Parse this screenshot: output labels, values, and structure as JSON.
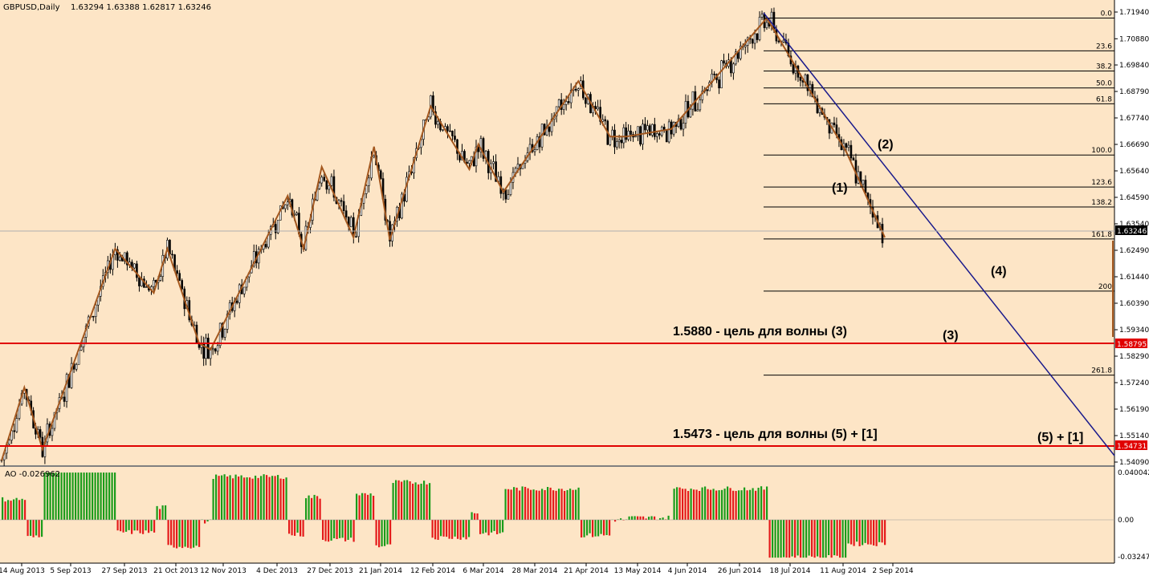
{
  "chart_header": {
    "symbol_title": "GBPUSD,Daily",
    "ohlc": "1.63294 1.63388 1.62817 1.63246"
  },
  "colors": {
    "background": "#fde5c6",
    "grid_text": "#000000",
    "zigzag": "#a3571e",
    "trendline": "#1a1a8c",
    "support": "#e00000",
    "ao_up": "#1a9c1a",
    "ao_down": "#e41a1a",
    "fib": "#000000"
  },
  "chart_data": [
    {
      "type": "candlestick",
      "title": "GBPUSD,Daily",
      "ylim": [
        1.5406,
        1.7255
      ],
      "x_tick_labels": [
        "14 Aug 2013",
        "5 Sep 2013",
        "27 Sep 2013",
        "21 Oct 2013",
        "12 Nov 2013",
        "4 Dec 2013",
        "27 Dec 2013",
        "21 Jan 2014",
        "12 Feb 2014",
        "6 Mar 2014",
        "28 Mar 2014",
        "21 Apr 2014",
        "13 May 2014",
        "4 Jun 2014",
        "26 Jun 2014",
        "18 Jul 2014",
        "11 Aug 2014",
        "2 Sep 2014"
      ],
      "y_tick_labels": [
        "1.71940",
        "1.70880",
        "1.69840",
        "1.68790",
        "1.67740",
        "1.66690",
        "1.65640",
        "1.64590",
        "1.63540",
        "1.62490",
        "1.61440",
        "1.60390",
        "1.59340",
        "1.58290",
        "1.57240",
        "1.56190",
        "1.55140",
        "1.54090"
      ],
      "current_price": "1.63246",
      "zigzag_points": [
        {
          "date": "2013-08-12",
          "price": 1.5415
        },
        {
          "date": "2013-08-22",
          "price": 1.5705
        },
        {
          "date": "2013-08-30",
          "price": 1.546
        },
        {
          "date": "2013-10-01",
          "price": 1.6255
        },
        {
          "date": "2013-10-18",
          "price": 1.608
        },
        {
          "date": "2013-10-24",
          "price": 1.6255
        },
        {
          "date": "2013-11-07",
          "price": 1.588
        },
        {
          "date": "2013-11-12",
          "price": 1.5855
        },
        {
          "date": "2013-12-16",
          "price": 1.6465
        },
        {
          "date": "2013-12-23",
          "price": 1.6255
        },
        {
          "date": "2013-12-31",
          "price": 1.658
        },
        {
          "date": "2014-01-14",
          "price": 1.63
        },
        {
          "date": "2014-01-23",
          "price": 1.666
        },
        {
          "date": "2014-01-30",
          "price": 1.629
        },
        {
          "date": "2014-02-17",
          "price": 1.682
        },
        {
          "date": "2014-03-06",
          "price": 1.657
        },
        {
          "date": "2014-03-10",
          "price": 1.667
        },
        {
          "date": "2014-03-21",
          "price": 1.648
        },
        {
          "date": "2014-04-23",
          "price": 1.692
        },
        {
          "date": "2014-05-07",
          "price": 1.67
        },
        {
          "date": "2014-05-14",
          "price": 1.67
        },
        {
          "date": "2014-06-03",
          "price": 1.673
        },
        {
          "date": "2014-07-15",
          "price": 1.717
        },
        {
          "date": "2014-08-19",
          "price": 1.664
        },
        {
          "date": "2014-09-05",
          "price": 1.63
        }
      ],
      "trendline": {
        "from": {
          "date": "2014-07-15",
          "price": 1.717
        },
        "to_bottom_right": true
      },
      "fibonacci_levels": [
        {
          "label": "0.0",
          "price": 1.717
        },
        {
          "label": "23.6",
          "price": 1.704
        },
        {
          "label": "38.2",
          "price": 1.696
        },
        {
          "label": "50.0",
          "price": 1.6893
        },
        {
          "label": "61.8",
          "price": 1.683
        },
        {
          "label": "100.0",
          "price": 1.6627
        },
        {
          "label": "123.6",
          "price": 1.65
        },
        {
          "label": "138.2",
          "price": 1.6421
        },
        {
          "label": "161.8",
          "price": 1.6294
        },
        {
          "label": "200",
          "price": 1.6087
        },
        {
          "label": "261.8",
          "price": 1.5754
        }
      ],
      "horizontal_lines": [
        {
          "name": "line-1-5880",
          "price_label": "1.58795"
        },
        {
          "name": "line-1-5473",
          "price_label": "1.54731"
        }
      ],
      "annotations": [
        {
          "text": "1.5880 - цель для волны (3)"
        },
        {
          "text": "1.5473 - цель для волны (5) + [1]"
        },
        {
          "text": "(1)"
        },
        {
          "text": "(2)"
        },
        {
          "text": "(3)"
        },
        {
          "text": "(4)"
        },
        {
          "text": "(5) + [1]"
        }
      ]
    },
    {
      "type": "bar",
      "title": "AO -0.026962",
      "y_tick_labels": [
        "0.040042",
        "0.00",
        "-0.032475"
      ],
      "ylim": [
        -0.032475,
        0.040042
      ],
      "indicator": "Awesome Oscillator"
    }
  ]
}
